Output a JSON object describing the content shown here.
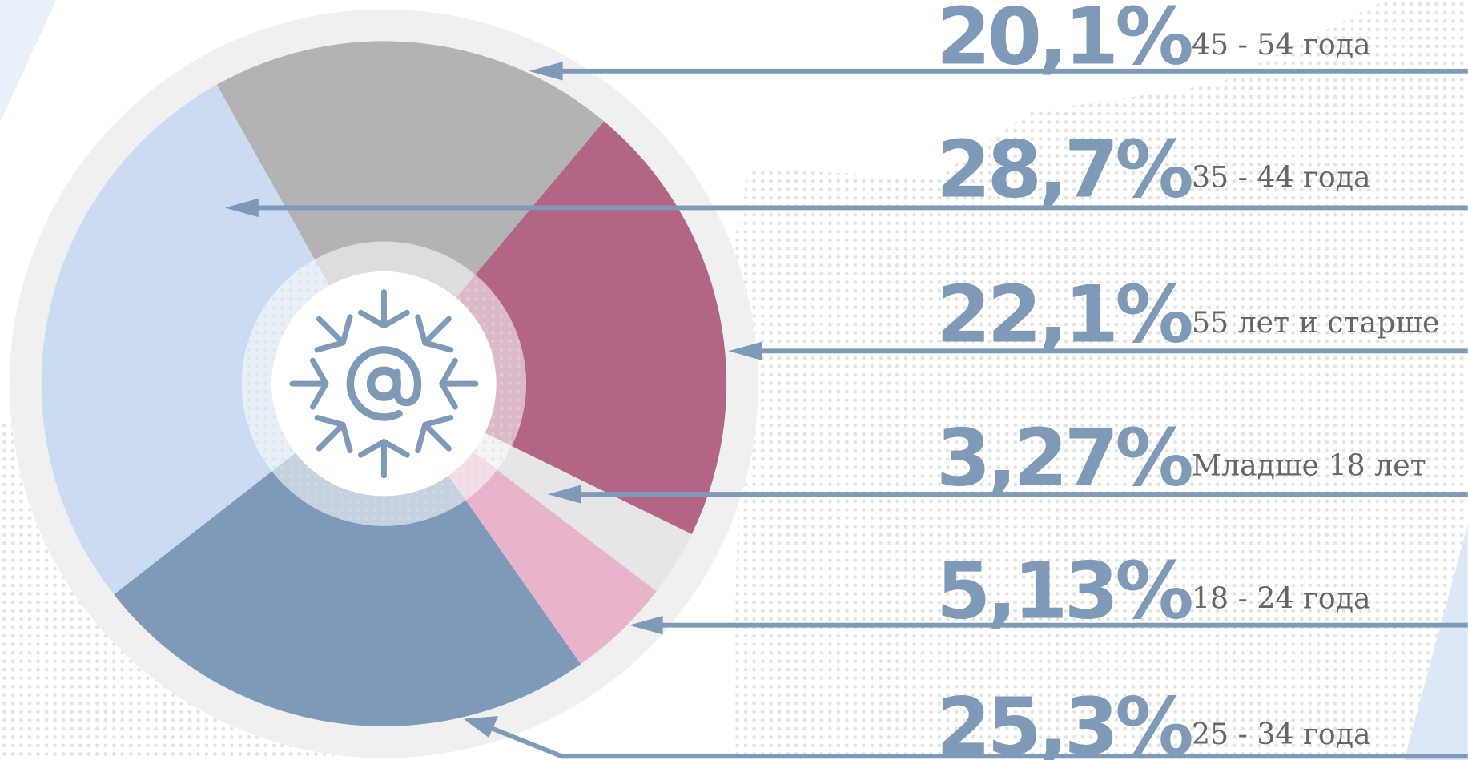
{
  "chart_data": {
    "type": "pie",
    "categories": [
      "45 - 54 года",
      "35 - 44 года",
      "55 лет и старше",
      "Младше 18 лет",
      "18 - 24 года",
      "25 - 34 года"
    ],
    "values": [
      20.1,
      28.7,
      22.1,
      3.27,
      5.13,
      25.3
    ],
    "value_labels": [
      "20,1%",
      "28,7%",
      "22,1%",
      "3,27%",
      "5,13%",
      "25,3%"
    ],
    "colors": [
      "#b3b3b3",
      "#cbdcf2",
      "#b26585",
      "#e6e6e6",
      "#e8b4cb",
      "#7f9ab8"
    ]
  }
}
